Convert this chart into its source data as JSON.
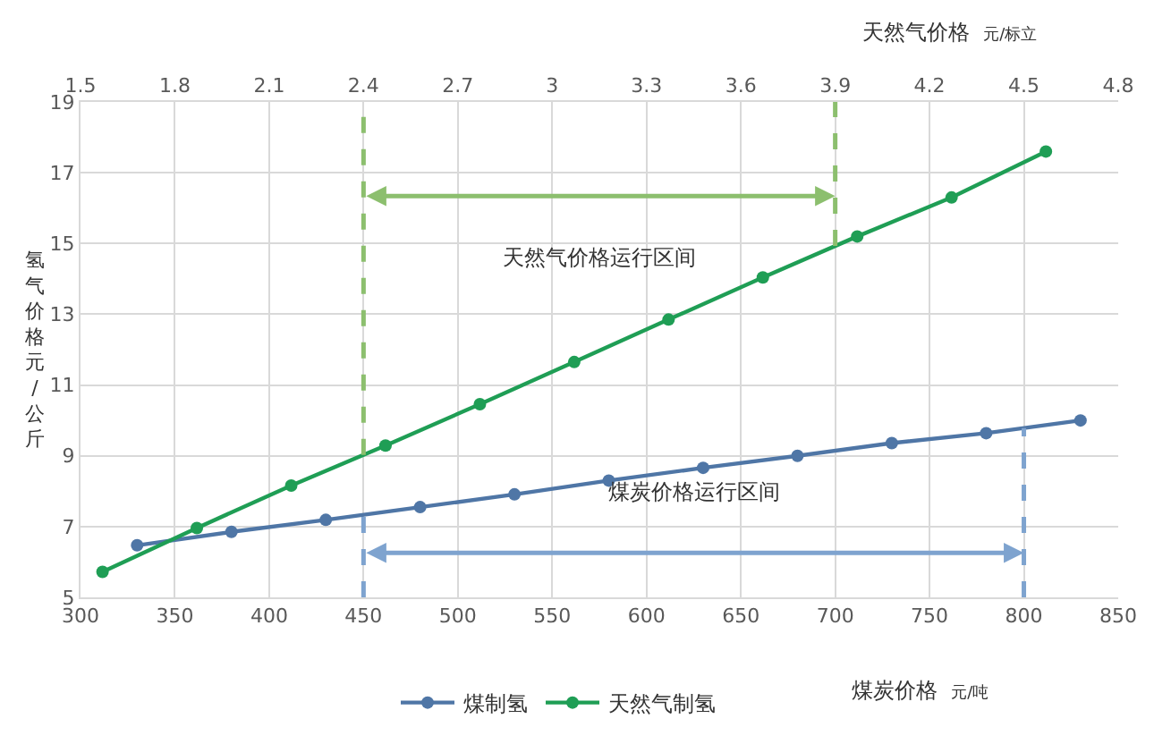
{
  "chart_data": {
    "type": "line",
    "xlabel": "煤炭价格 元/吨",
    "x2label": "天然气价格 元/标立",
    "ylabel": "氢气价格元/公斤",
    "series": [
      {
        "name": "煤制氢",
        "color": "#4f76a6",
        "x": [
          330,
          380,
          430,
          480,
          530,
          580,
          630,
          680,
          730,
          780,
          830
        ],
        "values": [
          6.47,
          6.85,
          7.19,
          7.55,
          7.91,
          8.3,
          8.66,
          9.0,
          9.36,
          9.64,
          10.0
        ]
      },
      {
        "name": "天然气制氢",
        "color": "#1f9e55",
        "axis": "x2",
        "x": [
          1.57,
          1.87,
          2.17,
          2.47,
          2.77,
          3.07,
          3.37,
          3.67,
          3.97,
          4.27,
          4.57
        ],
        "values": [
          5.72,
          6.96,
          8.16,
          9.29,
          10.46,
          11.65,
          12.85,
          14.04,
          15.2,
          16.3,
          17.6
        ]
      }
    ],
    "xlim": [
      300,
      850
    ],
    "xticks": [
      300,
      350,
      400,
      450,
      500,
      550,
      600,
      650,
      700,
      750,
      800,
      850
    ],
    "x2lim": [
      1.5,
      4.8
    ],
    "x2ticks": [
      1.5,
      1.8,
      2.1,
      2.4,
      2.7,
      3,
      3.3,
      3.6,
      3.9,
      4.2,
      4.5,
      4.8
    ],
    "ylim": [
      5,
      19
    ],
    "yticks": [
      5,
      7,
      9,
      11,
      13,
      15,
      17,
      19
    ],
    "ref_lines": [
      {
        "axis": "x2",
        "value": 2.4,
        "color": "#8cbf6e",
        "line_style": "dashed"
      },
      {
        "axis": "x2",
        "value": 3.9,
        "color": "#8cbf6e",
        "line_style": "dashed"
      },
      {
        "axis": "x",
        "value": 450,
        "color": "#7ea3cf",
        "line_style": "dashed"
      },
      {
        "axis": "x",
        "value": 800,
        "color": "#7ea3cf",
        "line_style": "dashed"
      }
    ],
    "annotations": [
      "天然气价格运行区间",
      "煤炭价格运行区间"
    ],
    "grid": true,
    "legend": "bottom",
    "marker": "circle",
    "line_style": "solid"
  }
}
